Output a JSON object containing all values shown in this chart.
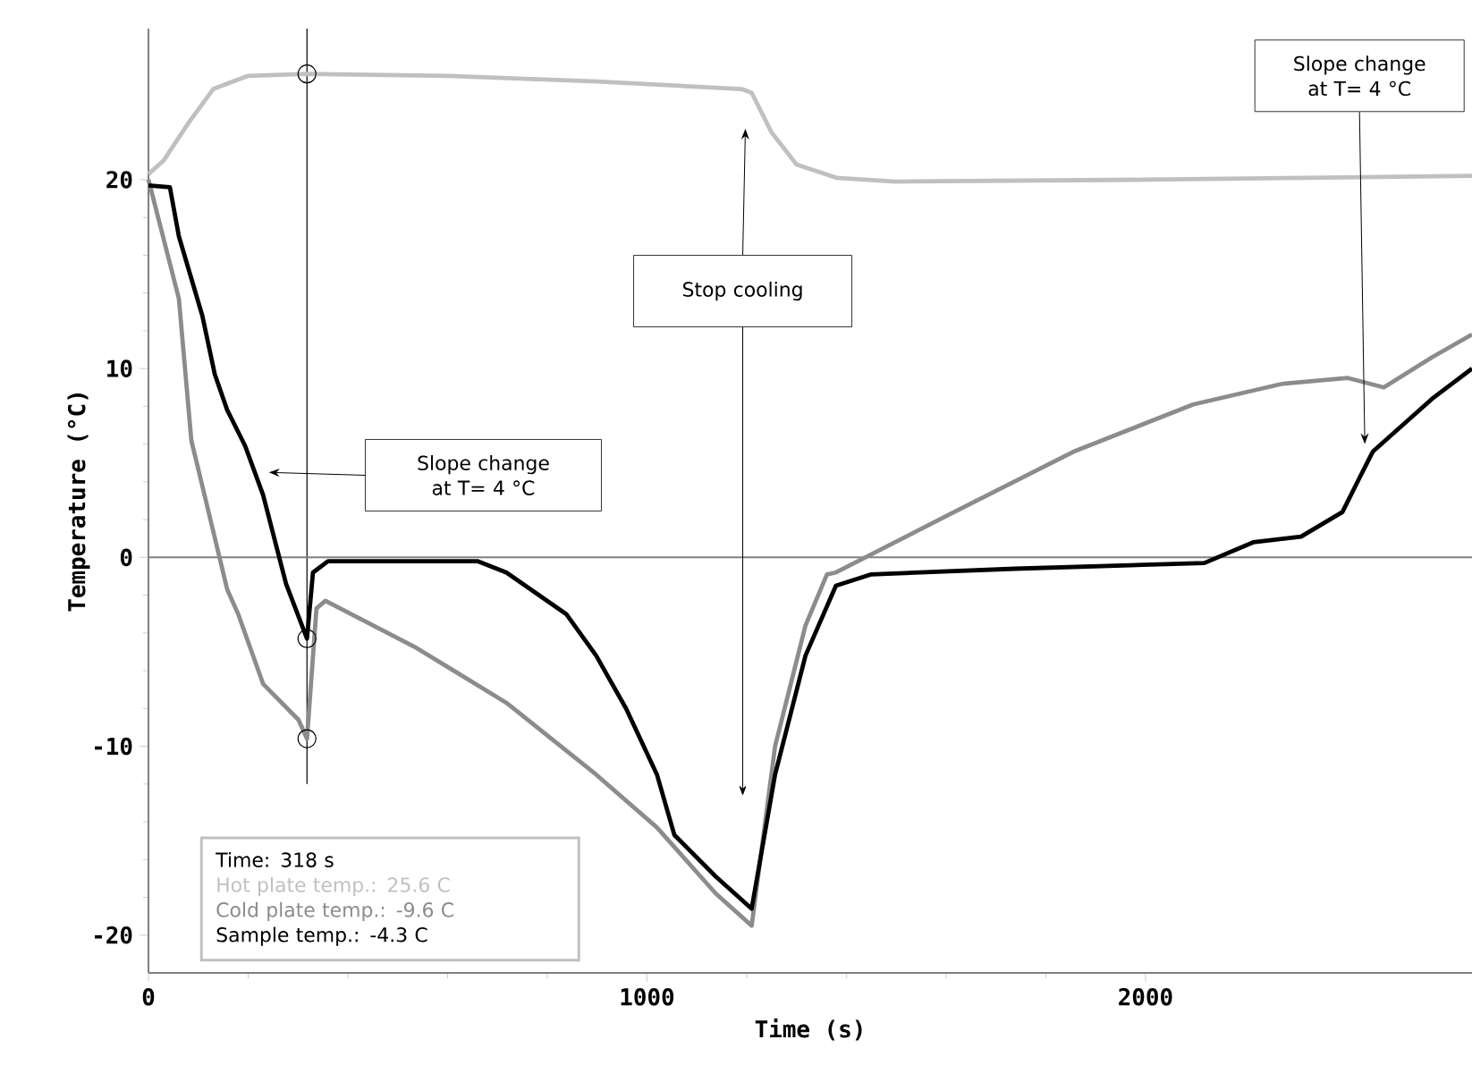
{
  "chart_data": {
    "type": "line",
    "xlabel": "Time (s)",
    "ylabel": "Temperature (°C)",
    "xlim": [
      0,
      2655
    ],
    "ylim": [
      -22,
      28
    ],
    "xticks": [
      0,
      1000,
      2000
    ],
    "yticks": [
      -20,
      -10,
      0,
      10,
      20
    ],
    "series": [
      {
        "color": "#c0c0c0",
        "x": [
          0,
          30,
          80,
          130,
          200,
          318,
          600,
          900,
          1190,
          1210,
          1250,
          1300,
          1380,
          1500,
          2000,
          2655
        ],
        "values": [
          20.3,
          21,
          23,
          24.8,
          25.5,
          25.6,
          25.5,
          25.2,
          24.8,
          24.6,
          22.5,
          20.8,
          20.1,
          19.9,
          20.0,
          20.2
        ]
      },
      {
        "color": "#8c8c8c",
        "x": [
          0,
          61,
          86,
          158,
          180,
          230,
          301,
          318,
          337,
          355,
          538,
          718,
          898,
          1020,
          1138,
          1210,
          1257,
          1318,
          1361,
          1379,
          1616,
          1856,
          2096,
          2276,
          2406,
          2478,
          2575,
          2655
        ],
        "values": [
          20,
          13.7,
          6.2,
          -1.7,
          -3.0,
          -6.7,
          -8.6,
          -9.6,
          -2.7,
          -2.3,
          -4.8,
          -7.7,
          -11.5,
          -14.3,
          -17.8,
          -19.5,
          -10,
          -3.6,
          -0.9,
          -0.8,
          2.4,
          5.6,
          8.1,
          9.2,
          9.5,
          9.0,
          10.6,
          11.8
        ]
      },
      {
        "color": "#000000",
        "x": [
          0,
          43,
          61,
          108,
          133,
          158,
          194,
          230,
          276,
          318,
          330,
          360,
          660,
          718,
          838,
          898,
          958,
          1020,
          1055,
          1138,
          1210,
          1257,
          1318,
          1379,
          1450,
          1738,
          2118,
          2216,
          2312,
          2395,
          2431,
          2456,
          2575,
          2655
        ],
        "values": [
          19.7,
          19.6,
          17,
          12.8,
          9.7,
          7.8,
          5.9,
          3.3,
          -1.4,
          -4.3,
          -0.8,
          -0.2,
          -0.2,
          -0.8,
          -3,
          -5.2,
          -8,
          -11.5,
          -14.7,
          -16.9,
          -18.6,
          -11.5,
          -5.2,
          -1.5,
          -0.9,
          -0.6,
          -0.3,
          0.8,
          1.1,
          2.4,
          4.3,
          5.6,
          8.4,
          10.0
        ]
      },
      {
        "type": "scatter",
        "marker": "circle",
        "color": "#000000",
        "x": [
          318,
          318,
          318
        ],
        "values": [
          25.6,
          -4.3,
          -9.6
        ]
      }
    ],
    "ref_lines": [
      {
        "axis": "x",
        "value": 318,
        "color": "#000000"
      },
      {
        "axis": "y",
        "value": 0,
        "color": "#808080"
      }
    ],
    "annotations": [
      "Slope change at T= 4 °C",
      "Stop cooling",
      "Slope change at T= 4 °C",
      "Time: 318 s",
      "Hot plate temp.: 25.6 C",
      "Cold plate temp.: -9.6 C",
      "Sample temp.: -4.3 C"
    ]
  }
}
